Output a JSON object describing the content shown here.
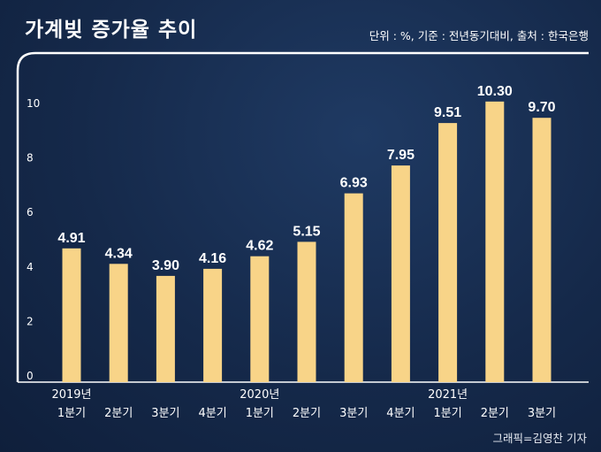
{
  "title": "가계빚 증가율 추이",
  "note": "단위 : %, 기준 : 전년동기대비, 출처 : 한국은행",
  "credit": "그래픽=김영찬 기자",
  "colors": {
    "bar": "#f8d488",
    "frame": "#ffffff",
    "text": "#ffffff"
  },
  "chart_data": {
    "type": "bar",
    "title": "가계빚 증가율 추이",
    "categories": [
      "1분기",
      "2분기",
      "3분기",
      "4분기",
      "1분기",
      "2분기",
      "3분기",
      "4분기",
      "1분기",
      "2분기",
      "3분기"
    ],
    "year_labels": [
      {
        "label": "2019년",
        "index": 0
      },
      {
        "label": "2020년",
        "index": 4
      },
      {
        "label": "2021년",
        "index": 8
      }
    ],
    "values": [
      4.91,
      4.34,
      3.9,
      4.16,
      4.62,
      5.15,
      6.93,
      7.95,
      9.51,
      10.3,
      9.7
    ],
    "value_labels": [
      "4.91",
      "4.34",
      "3.90",
      "4.16",
      "4.62",
      "5.15",
      "6.93",
      "7.95",
      "9.51",
      "10.30",
      "9.70"
    ],
    "yticks": [
      "0",
      "2",
      "4",
      "6",
      "8",
      "10"
    ],
    "ylim": [
      0,
      11
    ],
    "grid": false
  }
}
